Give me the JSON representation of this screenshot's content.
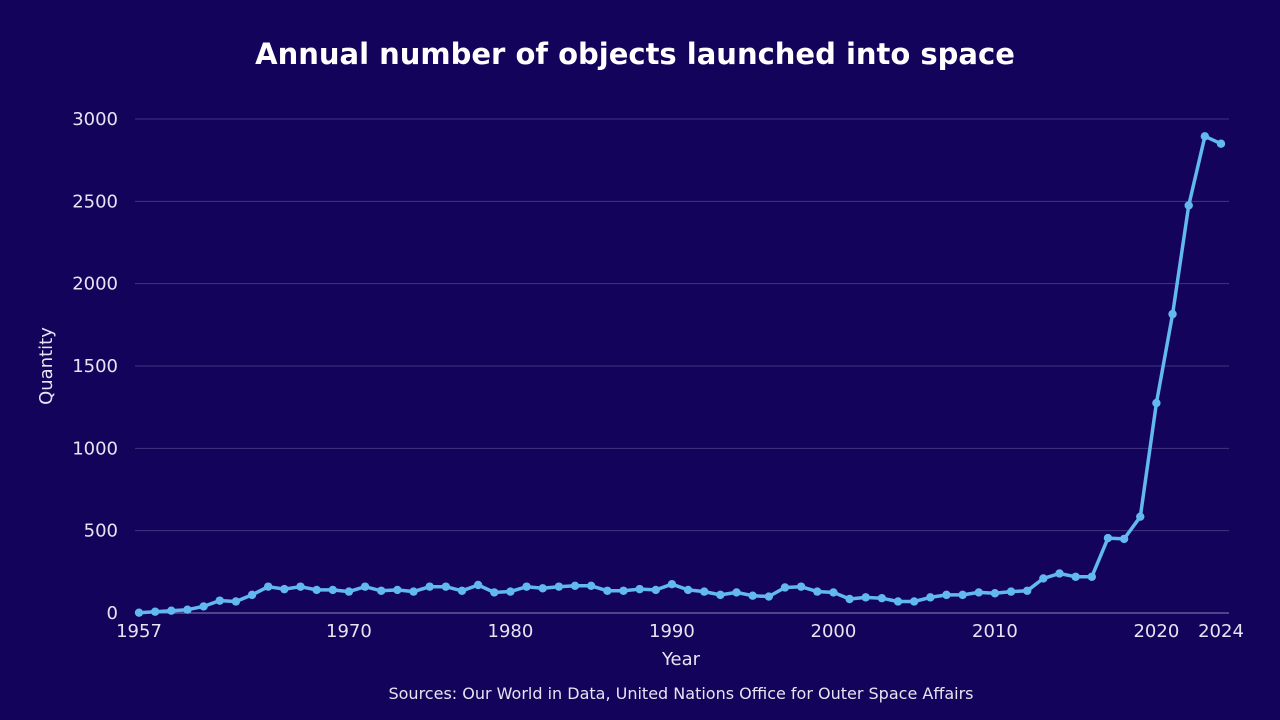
{
  "chart_data": {
    "type": "line",
    "title": "Annual number of objects launched into space",
    "xlabel": "Year",
    "ylabel": "Quantity",
    "source": "Sources: Our World in Data, United Nations Office for Outer Space Affairs",
    "xlim": [
      1957,
      2024
    ],
    "ylim": [
      0,
      3000
    ],
    "yticks": [
      0,
      500,
      1000,
      1500,
      2000,
      2500,
      3000
    ],
    "xticks": [
      1957,
      1970,
      1980,
      1990,
      2000,
      2010,
      2020,
      2024
    ],
    "grid": true,
    "color": "#62b8f0",
    "background": "#14035a",
    "series": [
      {
        "x": [
          1957,
          1958,
          1959,
          1960,
          1961,
          1962,
          1963,
          1964,
          1965,
          1966,
          1967,
          1968,
          1969,
          1970,
          1971,
          1972,
          1973,
          1974,
          1975,
          1976,
          1977,
          1978,
          1979,
          1980,
          1981,
          1982,
          1983,
          1984,
          1985,
          1986,
          1987,
          1988,
          1989,
          1990,
          1991,
          1992,
          1993,
          1994,
          1995,
          1996,
          1997,
          1998,
          1999,
          2000,
          2001,
          2002,
          2003,
          2004,
          2005,
          2006,
          2007,
          2008,
          2009,
          2010,
          2011,
          2012,
          2013,
          2014,
          2015,
          2016,
          2017,
          2018,
          2019,
          2020,
          2021,
          2022,
          2023,
          2024
        ],
        "values": [
          2,
          8,
          14,
          20,
          40,
          75,
          70,
          110,
          160,
          145,
          160,
          140,
          140,
          130,
          160,
          135,
          140,
          130,
          160,
          160,
          135,
          170,
          125,
          130,
          160,
          150,
          160,
          165,
          165,
          135,
          135,
          145,
          140,
          175,
          140,
          130,
          110,
          125,
          105,
          100,
          155,
          160,
          130,
          125,
          85,
          95,
          90,
          70,
          70,
          95,
          110,
          110,
          125,
          120,
          130,
          135,
          210,
          240,
          220,
          220,
          455,
          450,
          585,
          1275,
          1815,
          2475,
          2895,
          2850
        ]
      }
    ]
  }
}
